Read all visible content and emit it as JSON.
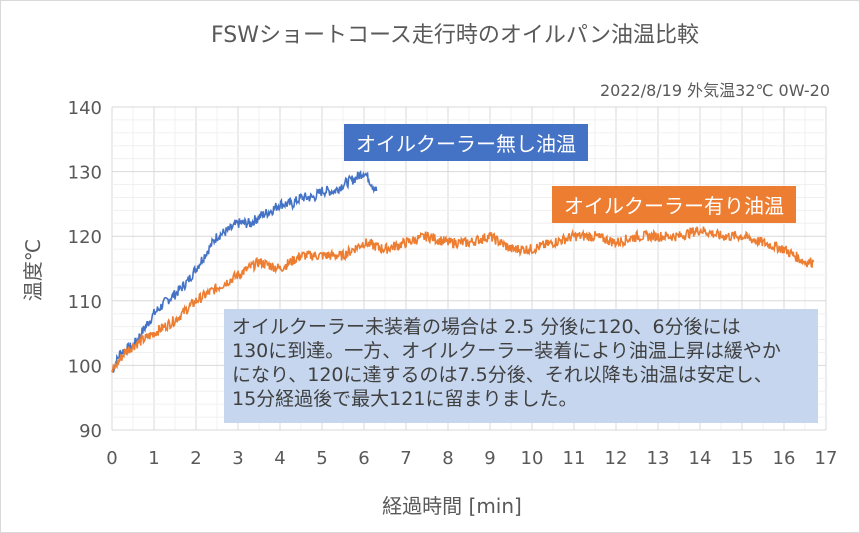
{
  "chart_data": {
    "type": "line",
    "title": "FSWショートコース走行時のオイルパン油温比較",
    "subtitle": "2022/8/19  外気温32℃  0W-20",
    "xlabel": "経過時間 [min]",
    "ylabel": "温度℃",
    "xlim": [
      0,
      17
    ],
    "ylim": [
      90,
      140
    ],
    "xticks": [
      "0",
      "1",
      "2",
      "3",
      "4",
      "5",
      "6",
      "7",
      "8",
      "9",
      "10",
      "11",
      "12",
      "13",
      "14",
      "15",
      "16",
      "17"
    ],
    "yticks": [
      "90",
      "100",
      "110",
      "120",
      "130",
      "140"
    ],
    "grid": true,
    "series": [
      {
        "name": "オイルクーラー無し油温",
        "color": "#4472c4",
        "x": [
          0,
          0.2,
          0.5,
          0.8,
          1,
          1.3,
          1.5,
          1.8,
          2,
          2.3,
          2.5,
          2.8,
          3,
          3.3,
          3.5,
          3.8,
          4,
          4.3,
          4.5,
          4.8,
          5,
          5.3,
          5.5,
          5.8,
          6,
          6.1,
          6.2,
          6.3
        ],
        "y": [
          99,
          102,
          103,
          106,
          108,
          110,
          111,
          113,
          115,
          118,
          120,
          121,
          122,
          122,
          123,
          124,
          125,
          125,
          126,
          126,
          127,
          127,
          128,
          129,
          130,
          129,
          128,
          127
        ]
      },
      {
        "name": "オイルクーラー有り油温",
        "color": "#ed7d31",
        "x": [
          0,
          0.3,
          0.5,
          1,
          1.5,
          2,
          2.5,
          3,
          3.5,
          4,
          4.5,
          5,
          5.5,
          6,
          6.5,
          7,
          7.5,
          8,
          8.5,
          9,
          9.5,
          10,
          10.5,
          11,
          11.5,
          12,
          12.5,
          13,
          13.5,
          14,
          14.5,
          15,
          15.5,
          16,
          16.5,
          16.7
        ],
        "y": [
          99,
          102,
          103,
          105,
          107,
          110,
          112,
          114,
          116,
          115,
          117,
          117,
          117,
          119,
          118,
          119,
          120,
          119,
          119,
          120,
          118,
          118,
          119,
          120,
          120,
          119,
          120,
          120,
          120,
          121,
          120,
          120,
          119,
          118,
          116,
          116
        ]
      }
    ],
    "annotation": [
      "オイルクーラー未装着の場合は 2.5 分後に120、6分後には",
      "130に到達。一方、オイルクーラー装着により油温上昇は緩やか",
      "になり、120に達するのは7.5分後、それ以降も油温は安定し、",
      "15分経過後で最大121に留まりました。"
    ]
  }
}
